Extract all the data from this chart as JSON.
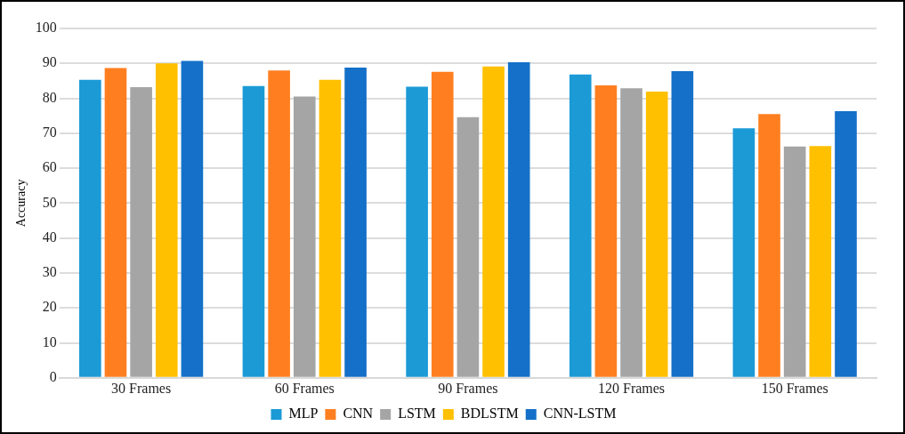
{
  "chart_data": {
    "type": "bar",
    "ylabel": "Accuracy",
    "categories": [
      "30 Frames",
      "60 Frames",
      "90 Frames",
      "120 Frames",
      "150 Frames"
    ],
    "series": [
      {
        "name": "MLP",
        "color": "#1b9ad6",
        "values": [
          85.3,
          83.5,
          83.3,
          86.8,
          71.4
        ]
      },
      {
        "name": "CNN",
        "color": "#ff7f20",
        "values": [
          88.7,
          88.0,
          87.6,
          83.7,
          75.5
        ]
      },
      {
        "name": "LSTM",
        "color": "#a5a5a5",
        "values": [
          83.2,
          80.5,
          74.6,
          82.9,
          66.2
        ]
      },
      {
        "name": "BDLSTM",
        "color": "#ffc000",
        "values": [
          90.0,
          85.3,
          89.1,
          81.9,
          66.3
        ]
      },
      {
        "name": "CNN-LSTM",
        "color": "#1470c8",
        "values": [
          90.7,
          88.8,
          90.3,
          87.8,
          76.3
        ]
      }
    ],
    "ylim": [
      0,
      100
    ],
    "yticks": [
      0,
      10,
      20,
      30,
      40,
      50,
      60,
      70,
      80,
      90,
      100
    ],
    "grid": "y",
    "legend": "bottom"
  }
}
